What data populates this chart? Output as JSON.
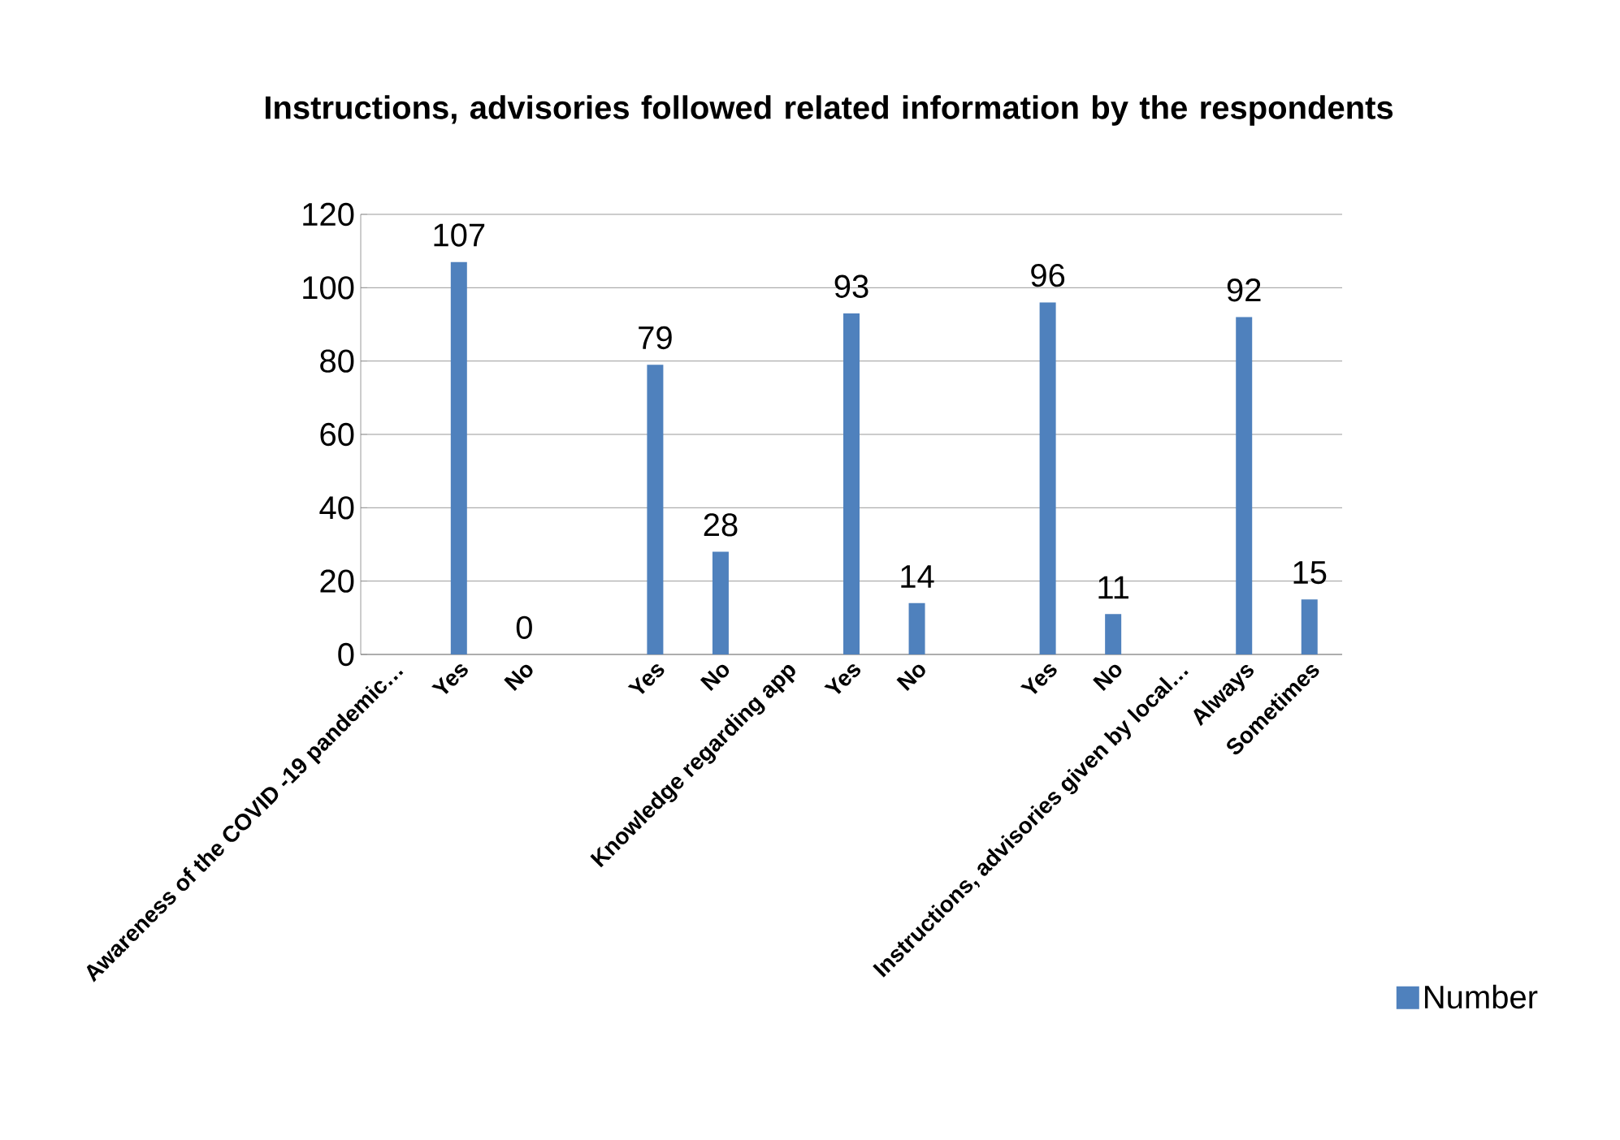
{
  "chart_data": {
    "type": "bar",
    "title": "Instructions, advisories  followed related information by the respondents",
    "categories": [
      "Awareness of the COVID -19 pandemic…",
      "Yes",
      "No",
      null,
      "Yes",
      "No",
      "Knowledge regarding app",
      "Yes",
      "No",
      null,
      "Yes",
      "No",
      "Instructions, advisories given by local…",
      "Always",
      "Sometimes"
    ],
    "series": [
      {
        "name": "Number",
        "color": "#4f81bd",
        "values": [
          null,
          107,
          0,
          null,
          79,
          28,
          null,
          93,
          14,
          null,
          96,
          11,
          null,
          92,
          15
        ]
      }
    ],
    "ylim": [
      0,
      120
    ],
    "yticks": [
      0,
      20,
      40,
      60,
      80,
      100,
      120
    ],
    "grid": "y",
    "legend": "right",
    "data_labels": true
  }
}
